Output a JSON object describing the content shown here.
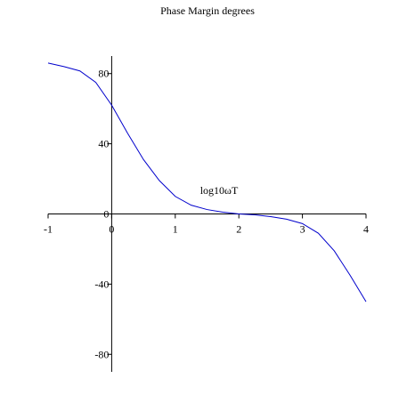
{
  "chart_data": {
    "type": "line",
    "title": "Phase Margin degrees",
    "x_label": "log10ωT",
    "x": [
      -1,
      -0.75,
      -0.5,
      -0.25,
      0,
      0.25,
      0.5,
      0.75,
      1,
      1.25,
      1.5,
      1.75,
      2,
      2.25,
      2.5,
      2.75,
      3,
      3.25,
      3.5,
      3.75,
      4
    ],
    "series": [
      {
        "color": "#0000cc",
        "values": [
          86,
          84,
          81.5,
          75,
          62,
          46,
          31,
          19,
          10,
          5,
          2.5,
          1,
          0,
          -0.5,
          -1.5,
          -3,
          -5.5,
          -11,
          -21,
          -35,
          -50
        ]
      }
    ],
    "xlim": [
      -1,
      4
    ],
    "xticks": [
      -1,
      0,
      1,
      2,
      3,
      4
    ],
    "ylim": [
      -90,
      90
    ],
    "yticks": [
      -80,
      -40,
      0,
      40,
      80
    ]
  }
}
